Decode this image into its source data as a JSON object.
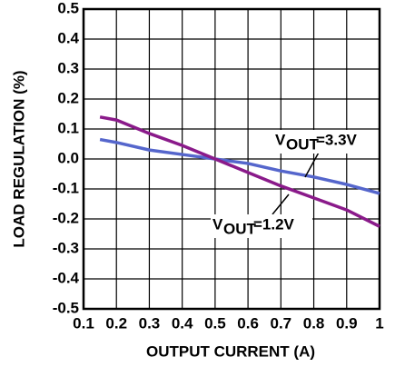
{
  "chart_data": {
    "type": "line",
    "x_label": "OUTPUT CURRENT (A)",
    "y_label": "LOAD REGULATION (%)",
    "xlim": [
      0.1,
      1
    ],
    "xticks": [
      0.1,
      0.2,
      0.3,
      0.4,
      0.5,
      0.6,
      0.7,
      0.8,
      0.9,
      1
    ],
    "ylim": [
      -0.5,
      0.5
    ],
    "yticks": [
      0.5,
      0.4,
      0.3,
      0.2,
      0.1,
      {
        "value": 0,
        "label": "0.0"
      },
      -0.1,
      -0.2,
      -0.3,
      -0.4,
      -0.5
    ],
    "grid": true,
    "series": [
      {
        "color": "#5566cc",
        "x": [
          0.15,
          0.2,
          0.3,
          0.4,
          0.5,
          0.6,
          0.7,
          0.8,
          0.9,
          1.0
        ],
        "values": [
          0.065,
          0.055,
          0.03,
          0.015,
          0.0,
          -0.015,
          -0.04,
          -0.06,
          -0.085,
          -0.115
        ]
      },
      {
        "color": "#8a1a8a",
        "x": [
          0.15,
          0.2,
          0.3,
          0.4,
          0.5,
          0.6,
          0.7,
          0.8,
          0.9,
          1.0
        ],
        "values": [
          0.14,
          0.13,
          0.085,
          0.045,
          0.0,
          -0.045,
          -0.09,
          -0.13,
          -0.17,
          -0.225
        ]
      }
    ],
    "annotations": [
      {
        "text": "V",
        "subscript": "OUT",
        "text_after": "=3.3V"
      },
      {
        "text": "V",
        "subscript": "OUT",
        "text_after": "=1.2V"
      }
    ]
  }
}
